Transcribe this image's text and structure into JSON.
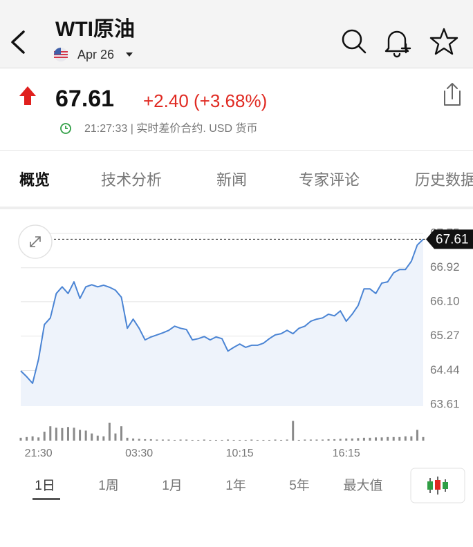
{
  "header": {
    "title": "WTI原油",
    "date": "Apr 26"
  },
  "quote": {
    "price": "67.61",
    "change": "+2.40 (+3.68%)",
    "time": "21:27:33 | 实时差价合约. USD 货币"
  },
  "tabs": [
    "概览",
    "技术分析",
    "新闻",
    "专家评论",
    "历史数据"
  ],
  "chart_data": {
    "type": "line",
    "categories": [
      null,
      null,
      null,
      "21:30",
      null,
      null,
      null,
      null,
      null,
      null,
      null,
      null,
      null,
      null,
      null,
      null,
      null,
      null,
      null,
      null,
      "03:30",
      null,
      null,
      null,
      null,
      null,
      null,
      null,
      null,
      null,
      null,
      null,
      null,
      null,
      null,
      null,
      null,
      "10:15",
      null,
      null,
      null,
      null,
      null,
      null,
      null,
      null,
      null,
      null,
      null,
      null,
      null,
      null,
      null,
      null,
      null,
      "16:15",
      null,
      null,
      null,
      null,
      null,
      null,
      null,
      null,
      null,
      null,
      null,
      null,
      null
    ],
    "values": [
      64.43,
      64.29,
      64.13,
      64.71,
      65.55,
      65.71,
      66.3,
      66.46,
      66.3,
      66.58,
      66.18,
      66.46,
      66.51,
      66.46,
      66.5,
      66.45,
      66.38,
      66.21,
      65.46,
      65.68,
      65.46,
      65.18,
      65.25,
      65.3,
      65.35,
      65.41,
      65.51,
      65.46,
      65.43,
      65.18,
      65.21,
      65.26,
      65.18,
      65.25,
      65.21,
      64.91,
      65.0,
      65.08,
      65.0,
      65.05,
      65.05,
      65.1,
      65.21,
      65.3,
      65.33,
      65.41,
      65.33,
      65.46,
      65.51,
      65.63,
      65.68,
      65.71,
      65.8,
      65.76,
      65.88,
      65.63,
      65.8,
      66.01,
      66.41,
      66.41,
      66.3,
      66.55,
      66.58,
      66.8,
      66.88,
      66.88,
      67.08,
      67.47,
      67.61
    ],
    "color": "#4a84d4",
    "ylim": [
      63.58,
      67.8
    ],
    "yticks": [
      63.61,
      64.44,
      65.27,
      {
        "value": 66.1,
        "label": "66.10"
      },
      66.92,
      67.75
    ],
    "grid": true,
    "last_value": 67.61,
    "volume": {
      "values": [
        8,
        10,
        12,
        9,
        25,
        40,
        36,
        35,
        38,
        36,
        30,
        28,
        20,
        14,
        12,
        50,
        20,
        40,
        8,
        6,
        5,
        4,
        4,
        3,
        3,
        3,
        2,
        3,
        3,
        2,
        2,
        3,
        2,
        2,
        2,
        3,
        2,
        2,
        2,
        3,
        2,
        2,
        2,
        3,
        2,
        3,
        55,
        2,
        3,
        3,
        3,
        3,
        4,
        4,
        5,
        6,
        6,
        7,
        8,
        8,
        9,
        9,
        10,
        10,
        10,
        12,
        12,
        30,
        10
      ],
      "color": "#8a8a8a",
      "y2lim": [
        0,
        100
      ]
    }
  },
  "ranges": [
    "1日",
    "1周",
    "1月",
    "1年",
    "5年",
    "最大值"
  ]
}
